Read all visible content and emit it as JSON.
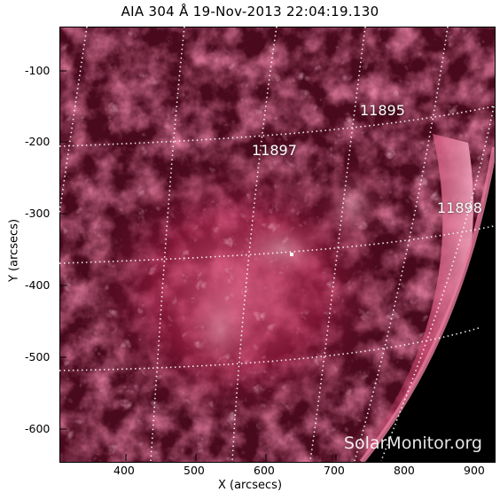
{
  "title": "AIA 304 Å 19-Nov-2013 22:04:19.130",
  "watermark": "SolarMonitor.org",
  "xlabel": "X (arcsecs)",
  "ylabel": "Y (arcsecs)",
  "x_ticks": [
    "400",
    "500",
    "600",
    "700",
    "800",
    "900"
  ],
  "y_ticks": [
    "-100",
    "-200",
    "-300",
    "-400",
    "-500",
    "-600"
  ],
  "active_regions": [
    "11895",
    "11897",
    "11898"
  ],
  "colors": {
    "background": "#1a0008",
    "plasma": "#b0244e",
    "bright": "#f4b8cb",
    "grid": "#ffffff"
  }
}
